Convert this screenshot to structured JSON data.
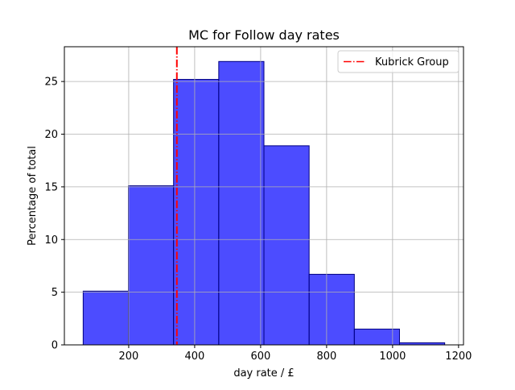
{
  "chart_data": {
    "type": "bar",
    "title": "MC for Follow day rates",
    "xlabel": "day rate / £",
    "ylabel": "Percentage of total",
    "xlim": [
      5,
      1215
    ],
    "ylim": [
      0,
      28.3
    ],
    "xticks": [
      200,
      400,
      600,
      800,
      1000,
      1200
    ],
    "yticks": [
      0,
      5,
      10,
      15,
      20,
      25
    ],
    "grid": true,
    "bin_edges": [
      62,
      199,
      336,
      473,
      610,
      747,
      884,
      1021,
      1158
    ],
    "values": [
      5.1,
      15.1,
      25.2,
      26.9,
      18.9,
      6.7,
      1.5,
      0.2
    ],
    "bar_color": "#0000ff",
    "bar_edge_color": "#000080",
    "reference_line": {
      "x": 346,
      "label": "Kubrick Group",
      "color": "#ff0000",
      "style": "dash-dot"
    },
    "legend_position": "top-right"
  }
}
